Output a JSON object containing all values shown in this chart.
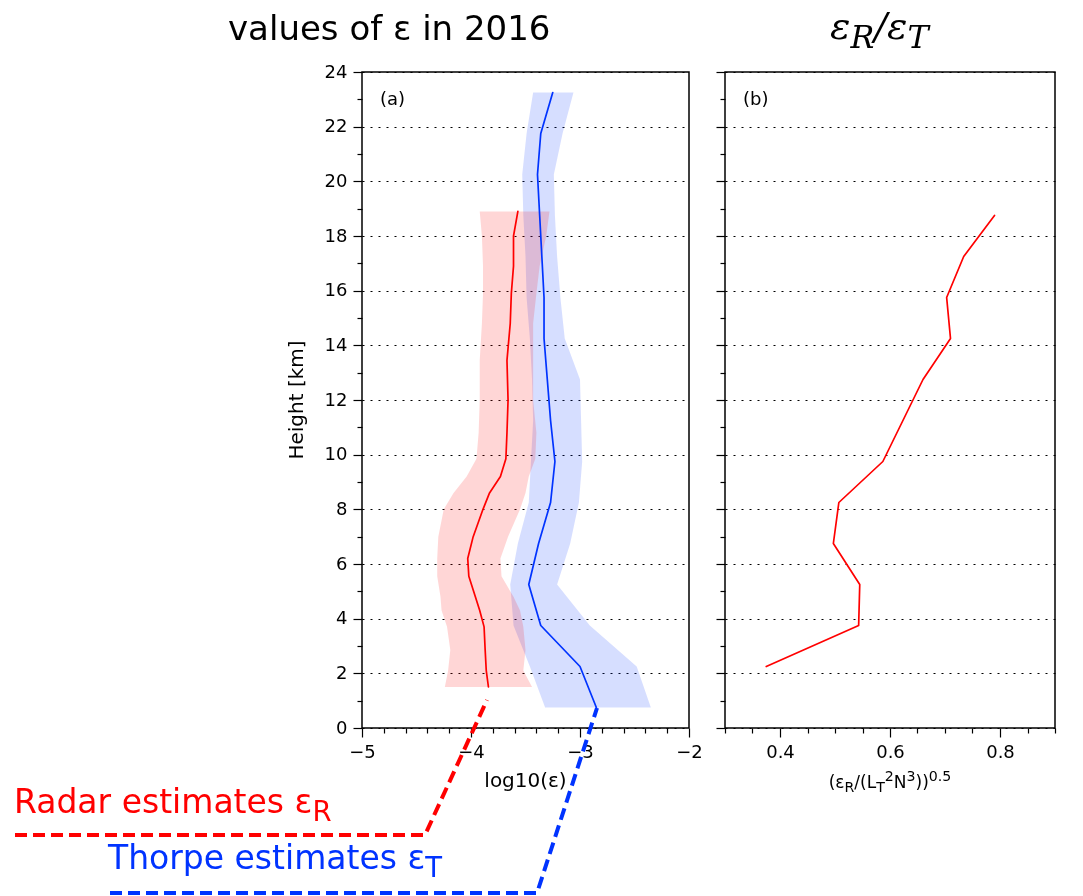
{
  "chart_data": [
    {
      "type": "line",
      "orientation": "horizontal",
      "title": "values of ε in 2016",
      "xlabel": "log10(ε)",
      "ylabel": "Height [km]",
      "annotations": [
        "(a)"
      ],
      "grid": "y",
      "xlim": [
        -5,
        -2
      ],
      "xticks": [
        -5,
        {
          "value": -4.8,
          "label": null
        },
        {
          "value": -4.6,
          "label": null
        },
        {
          "value": -4.4,
          "label": null
        },
        {
          "value": -4.2,
          "label": null
        },
        -4,
        {
          "value": -3.8,
          "label": null
        },
        {
          "value": -3.6,
          "label": null
        },
        {
          "value": -3.4,
          "label": null
        },
        {
          "value": -3.2,
          "label": null
        },
        -3,
        {
          "value": -2.8,
          "label": null
        },
        {
          "value": -2.6,
          "label": null
        },
        {
          "value": -2.4,
          "label": null
        },
        {
          "value": -2.2,
          "label": null
        },
        -2
      ],
      "ylim": [
        0,
        24
      ],
      "yticks": [
        0,
        {
          "value": 1,
          "label": null
        },
        2,
        {
          "value": 3,
          "label": null
        },
        4,
        {
          "value": 5,
          "label": null
        },
        6,
        {
          "value": 7,
          "label": null
        },
        8,
        {
          "value": 9,
          "label": null
        },
        10,
        {
          "value": 11,
          "label": null
        },
        12,
        {
          "value": 13,
          "label": null
        },
        14,
        {
          "value": 15,
          "label": null
        },
        16,
        {
          "value": 17,
          "label": null
        },
        18,
        {
          "value": 19,
          "label": null
        },
        20,
        {
          "value": 21,
          "label": null
        },
        22,
        {
          "value": 23,
          "label": null
        },
        24
      ],
      "series": [
        {
          "name": "Thorpe estimates ε$_{T}$",
          "color": "#0033ff",
          "x": [
            0.75,
            2.25,
            3.75,
            5.25,
            6.75,
            8.25,
            9.75,
            11.25,
            12.75,
            14.25,
            15.75,
            17.25,
            18.75,
            20.25,
            21.75,
            23.25
          ],
          "values": [
            -2.85,
            -3.0,
            -3.36,
            -3.47,
            -3.38,
            -3.27,
            -3.23,
            -3.27,
            -3.3,
            -3.33,
            -3.33,
            -3.35,
            -3.37,
            -3.39,
            -3.36,
            -3.25
          ],
          "lower": [
            -3.32,
            -3.46,
            -3.61,
            -3.64,
            -3.57,
            -3.47,
            -3.45,
            -3.43,
            -3.44,
            -3.46,
            -3.49,
            -3.5,
            -3.52,
            -3.53,
            -3.49,
            -3.43
          ],
          "upper": [
            -2.35,
            -2.48,
            -2.91,
            -3.21,
            -3.09,
            -3.01,
            -2.98,
            -2.99,
            -3.0,
            -3.14,
            -3.18,
            -3.21,
            -3.23,
            -3.24,
            -3.16,
            -3.06
          ]
        },
        {
          "name": "Radar estimates ε$_{R}$",
          "color": "#ff0000",
          "x": [
            1.5,
            2.1,
            2.85,
            3.7,
            4.3,
            4.8,
            5.55,
            6.2,
            7.0,
            8.0,
            8.6,
            9.2,
            9.85,
            10.8,
            12.0,
            13.45,
            14.8,
            15.9,
            16.9,
            18.0,
            18.9
          ],
          "values": [
            -3.84,
            -3.86,
            -3.87,
            -3.88,
            -3.92,
            -3.96,
            -4.02,
            -4.03,
            -3.98,
            -3.89,
            -3.83,
            -3.73,
            -3.68,
            -3.67,
            -3.66,
            -3.67,
            -3.64,
            -3.63,
            -3.61,
            -3.61,
            -3.57
          ],
          "lower": [
            -4.24,
            -4.21,
            -4.19,
            -4.22,
            -4.27,
            -4.28,
            -4.31,
            -4.31,
            -4.3,
            -4.25,
            -4.16,
            -4.04,
            -3.95,
            -3.93,
            -3.92,
            -3.92,
            -3.9,
            -3.89,
            -3.89,
            -3.9,
            -3.92
          ],
          "upper": [
            -3.44,
            -3.52,
            -3.5,
            -3.52,
            -3.55,
            -3.61,
            -3.72,
            -3.73,
            -3.66,
            -3.55,
            -3.5,
            -3.47,
            -3.41,
            -3.4,
            -3.43,
            -3.43,
            -3.43,
            -3.4,
            -3.37,
            -3.31,
            -3.28
          ]
        }
      ]
    },
    {
      "type": "line",
      "orientation": "horizontal",
      "title": "ε$_{R}$/ε$_{T}$",
      "xlabel": "(ε$_{R}$/(L$_{T}$$^{2}$N$^{3}$))$^{0.5}$",
      "annotations": [
        "(b)"
      ],
      "grid": "y",
      "tick_labels": "x",
      "xlim": [
        0.3,
        0.9
      ],
      "xticks": [
        {
          "value": 0.3,
          "label": null
        },
        {
          "value": 0.35,
          "label": null
        },
        0.4,
        {
          "value": 0.45,
          "label": null
        },
        {
          "value": 0.5,
          "label": null
        },
        {
          "value": 0.55,
          "label": null
        },
        0.6,
        {
          "value": 0.65,
          "label": null
        },
        {
          "value": 0.7,
          "label": null
        },
        {
          "value": 0.75,
          "label": null
        },
        0.8,
        {
          "value": 0.85,
          "label": null
        },
        {
          "value": 0.9,
          "label": null
        }
      ],
      "ylim": [
        0,
        24
      ],
      "yticks": [
        0,
        {
          "value": 1,
          "label": null
        },
        2,
        {
          "value": 3,
          "label": null
        },
        4,
        {
          "value": 5,
          "label": null
        },
        6,
        {
          "value": 7,
          "label": null
        },
        8,
        {
          "value": 9,
          "label": null
        },
        10,
        {
          "value": 11,
          "label": null
        },
        12,
        {
          "value": 13,
          "label": null
        },
        14,
        {
          "value": 15,
          "label": null
        },
        16,
        {
          "value": 17,
          "label": null
        },
        18,
        {
          "value": 19,
          "label": null
        },
        20,
        {
          "value": 21,
          "label": null
        },
        22,
        {
          "value": 23,
          "label": null
        },
        24
      ],
      "series": [
        {
          "color": "#ff0000",
          "x": [
            2.25,
            3.75,
            5.25,
            6.75,
            8.25,
            9.75,
            12.75,
            14.25,
            15.75,
            17.25,
            18.75
          ],
          "values": [
            0.375,
            0.543,
            0.545,
            0.497,
            0.507,
            0.587,
            0.66,
            0.71,
            0.703,
            0.734,
            0.79
          ]
        }
      ]
    }
  ]
}
